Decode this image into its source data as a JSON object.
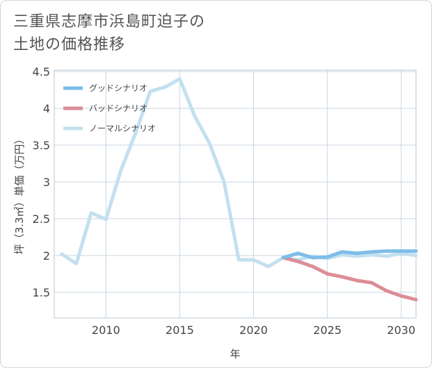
{
  "title_lines": [
    "三重県志摩市浜島町迫子の",
    "土地の価格推移"
  ],
  "chart_data": {
    "type": "line",
    "title": "三重県志摩市浜島町迫子の土地の価格推移",
    "xlabel": "年",
    "ylabel": "坪（3.3㎡）単価（万円）",
    "xlim": [
      2006.5,
      2031
    ],
    "ylim": [
      1.15,
      4.52
    ],
    "x_ticks": [
      2010,
      2015,
      2020,
      2025,
      2030
    ],
    "y_ticks": [
      1.5,
      2,
      2.5,
      3,
      3.5,
      4,
      4.5
    ],
    "x_tick_labels": [
      "2010",
      "2015",
      "2020",
      "2025",
      "2030"
    ],
    "y_tick_labels": [
      "1.5",
      "2",
      "2.5",
      "3",
      "3.5",
      "4",
      "4.5"
    ],
    "grid": true,
    "legend_position": "top-left",
    "series": [
      {
        "name": "ノーマルシナリオ",
        "color": "#c2e0ef",
        "x": [
          2007,
          2008,
          2009,
          2010,
          2011,
          2012,
          2013,
          2014,
          2015,
          2016,
          2017,
          2018,
          2019,
          2020,
          2021,
          2022,
          2023,
          2024,
          2025,
          2026,
          2027,
          2028,
          2029,
          2030,
          2031
        ],
        "y": [
          2.02,
          1.89,
          2.58,
          2.49,
          3.15,
          3.66,
          4.23,
          4.29,
          4.4,
          3.9,
          3.53,
          3.0,
          1.94,
          1.94,
          1.85,
          1.97,
          1.94,
          1.99,
          1.96,
          2.01,
          1.99,
          2.01,
          1.99,
          2.03,
          2.0
        ]
      },
      {
        "name": "バッドシナリオ",
        "color": "#dc8d96",
        "x": [
          2022,
          2023,
          2024,
          2025,
          2026,
          2027,
          2028,
          2029,
          2030,
          2031
        ],
        "y": [
          1.97,
          1.92,
          1.85,
          1.75,
          1.71,
          1.66,
          1.63,
          1.52,
          1.45,
          1.4
        ]
      },
      {
        "name": "グッドシナリオ",
        "color": "#7ebde9",
        "x": [
          2022,
          2023,
          2024,
          2025,
          2026,
          2027,
          2028,
          2029,
          2030,
          2031
        ],
        "y": [
          1.97,
          2.03,
          1.97,
          1.98,
          2.05,
          2.03,
          2.05,
          2.06,
          2.06,
          2.06
        ]
      }
    ],
    "legend_order": [
      "グッドシナリオ",
      "バッドシナリオ",
      "ノーマルシナリオ"
    ]
  }
}
